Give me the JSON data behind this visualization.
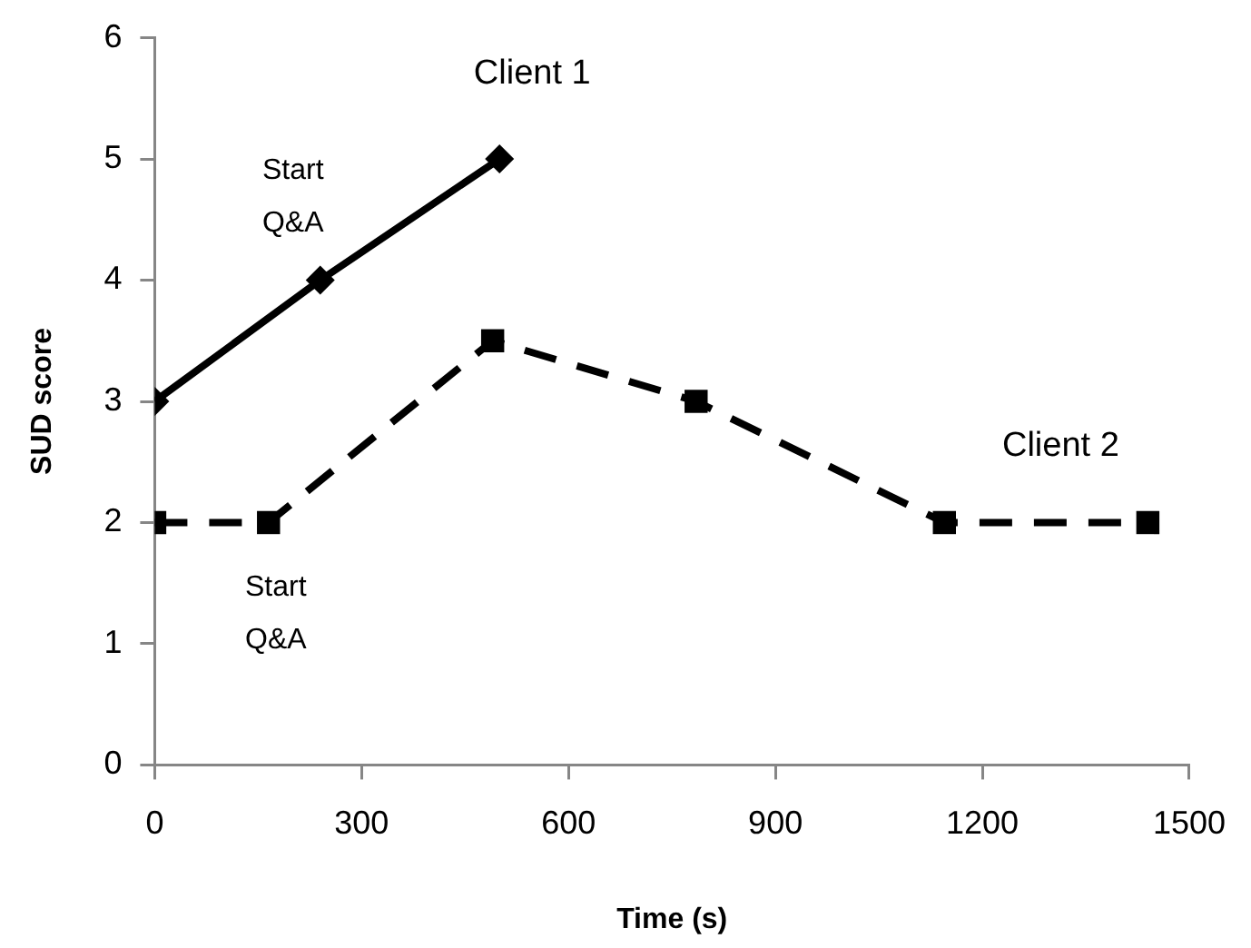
{
  "chart_data": {
    "type": "line",
    "xlabel": "Time (s)",
    "ylabel": "SUD score",
    "xlim": [
      0,
      1500
    ],
    "xticks": [
      0,
      300,
      600,
      900,
      1200,
      1500
    ],
    "ylim": [
      0,
      6
    ],
    "yticks": [
      0,
      1,
      2,
      3,
      4,
      5,
      6
    ],
    "grid": false,
    "legend": false,
    "series": [
      {
        "name": "Client 1",
        "color": "#000000",
        "marker": "diamond",
        "line_style": "solid",
        "x": [
          0,
          240,
          500
        ],
        "values": [
          3,
          4,
          5
        ]
      },
      {
        "name": "Client 2",
        "color": "#000000",
        "marker": "square",
        "line_style": "dashed",
        "x": [
          0,
          165,
          490,
          785,
          1145,
          1440
        ],
        "values": [
          2,
          2,
          3.5,
          3,
          2,
          2
        ]
      }
    ],
    "annotations": [
      {
        "text": "Start\nQ&A",
        "x": 240,
        "y": 4
      },
      {
        "text": "Start\nQ&A",
        "x": 165,
        "y": 2
      }
    ]
  }
}
